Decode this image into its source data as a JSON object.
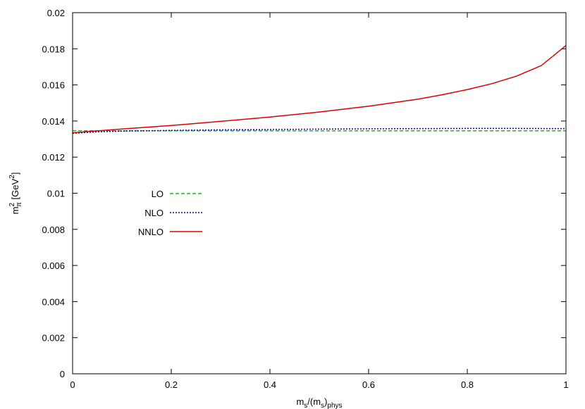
{
  "chart_data": {
    "type": "line",
    "title": "",
    "xlabel": {
      "base": "m",
      "sub1": "s",
      "mid": "/(m",
      "sub2": "s",
      "close": ")",
      "sub3": "phys"
    },
    "ylabel": {
      "base": "m",
      "sup": "2",
      "sub": "π",
      "unit_open": " [GeV",
      "unit_sup": "2",
      "unit_close": "]"
    },
    "xlim": [
      0,
      1
    ],
    "ylim": [
      0,
      0.02
    ],
    "xticks": [
      0,
      0.2,
      0.4,
      0.6,
      0.8,
      1
    ],
    "xtick_labels": [
      "0",
      "0.2",
      "0.4",
      "0.6",
      "0.8",
      "1"
    ],
    "yticks": [
      0,
      0.002,
      0.004,
      0.006,
      0.008,
      0.01,
      0.012,
      0.014,
      0.016,
      0.018,
      0.02
    ],
    "ytick_labels": [
      "0",
      "0.002",
      "0.004",
      "0.006",
      "0.008",
      "0.01",
      "0.012",
      "0.014",
      "0.016",
      "0.018",
      "0.02"
    ],
    "grid": false,
    "legend_position": "middle-left",
    "series": [
      {
        "name": "LO",
        "color": "#00cc00",
        "dash": "dashed",
        "x": [
          0,
          0.1,
          0.2,
          0.3,
          0.4,
          0.5,
          0.6,
          0.7,
          0.8,
          0.9,
          1
        ],
        "y": [
          0.01346,
          0.01346,
          0.01346,
          0.01346,
          0.01346,
          0.01346,
          0.01346,
          0.01346,
          0.01346,
          0.01346,
          0.01346
        ]
      },
      {
        "name": "NLO",
        "color": "#0000cc",
        "dash": "dotted",
        "x": [
          0,
          0.05,
          0.1,
          0.2,
          0.3,
          0.4,
          0.5,
          0.6,
          0.7,
          0.8,
          0.9,
          1
        ],
        "y": [
          0.01332,
          0.0134,
          0.01344,
          0.01348,
          0.01351,
          0.01353,
          0.01355,
          0.01357,
          0.01358,
          0.01359,
          0.01359,
          0.01358
        ]
      },
      {
        "name": "NNLO",
        "color": "#dd0000",
        "dash": "solid",
        "x": [
          0,
          0.1,
          0.2,
          0.3,
          0.4,
          0.5,
          0.6,
          0.7,
          0.75,
          0.8,
          0.85,
          0.9,
          0.95,
          1
        ],
        "y": [
          0.01335,
          0.01356,
          0.01375,
          0.01398,
          0.01422,
          0.0145,
          0.01482,
          0.01521,
          0.01546,
          0.01574,
          0.01607,
          0.01649,
          0.01707,
          0.01818
        ]
      }
    ]
  }
}
